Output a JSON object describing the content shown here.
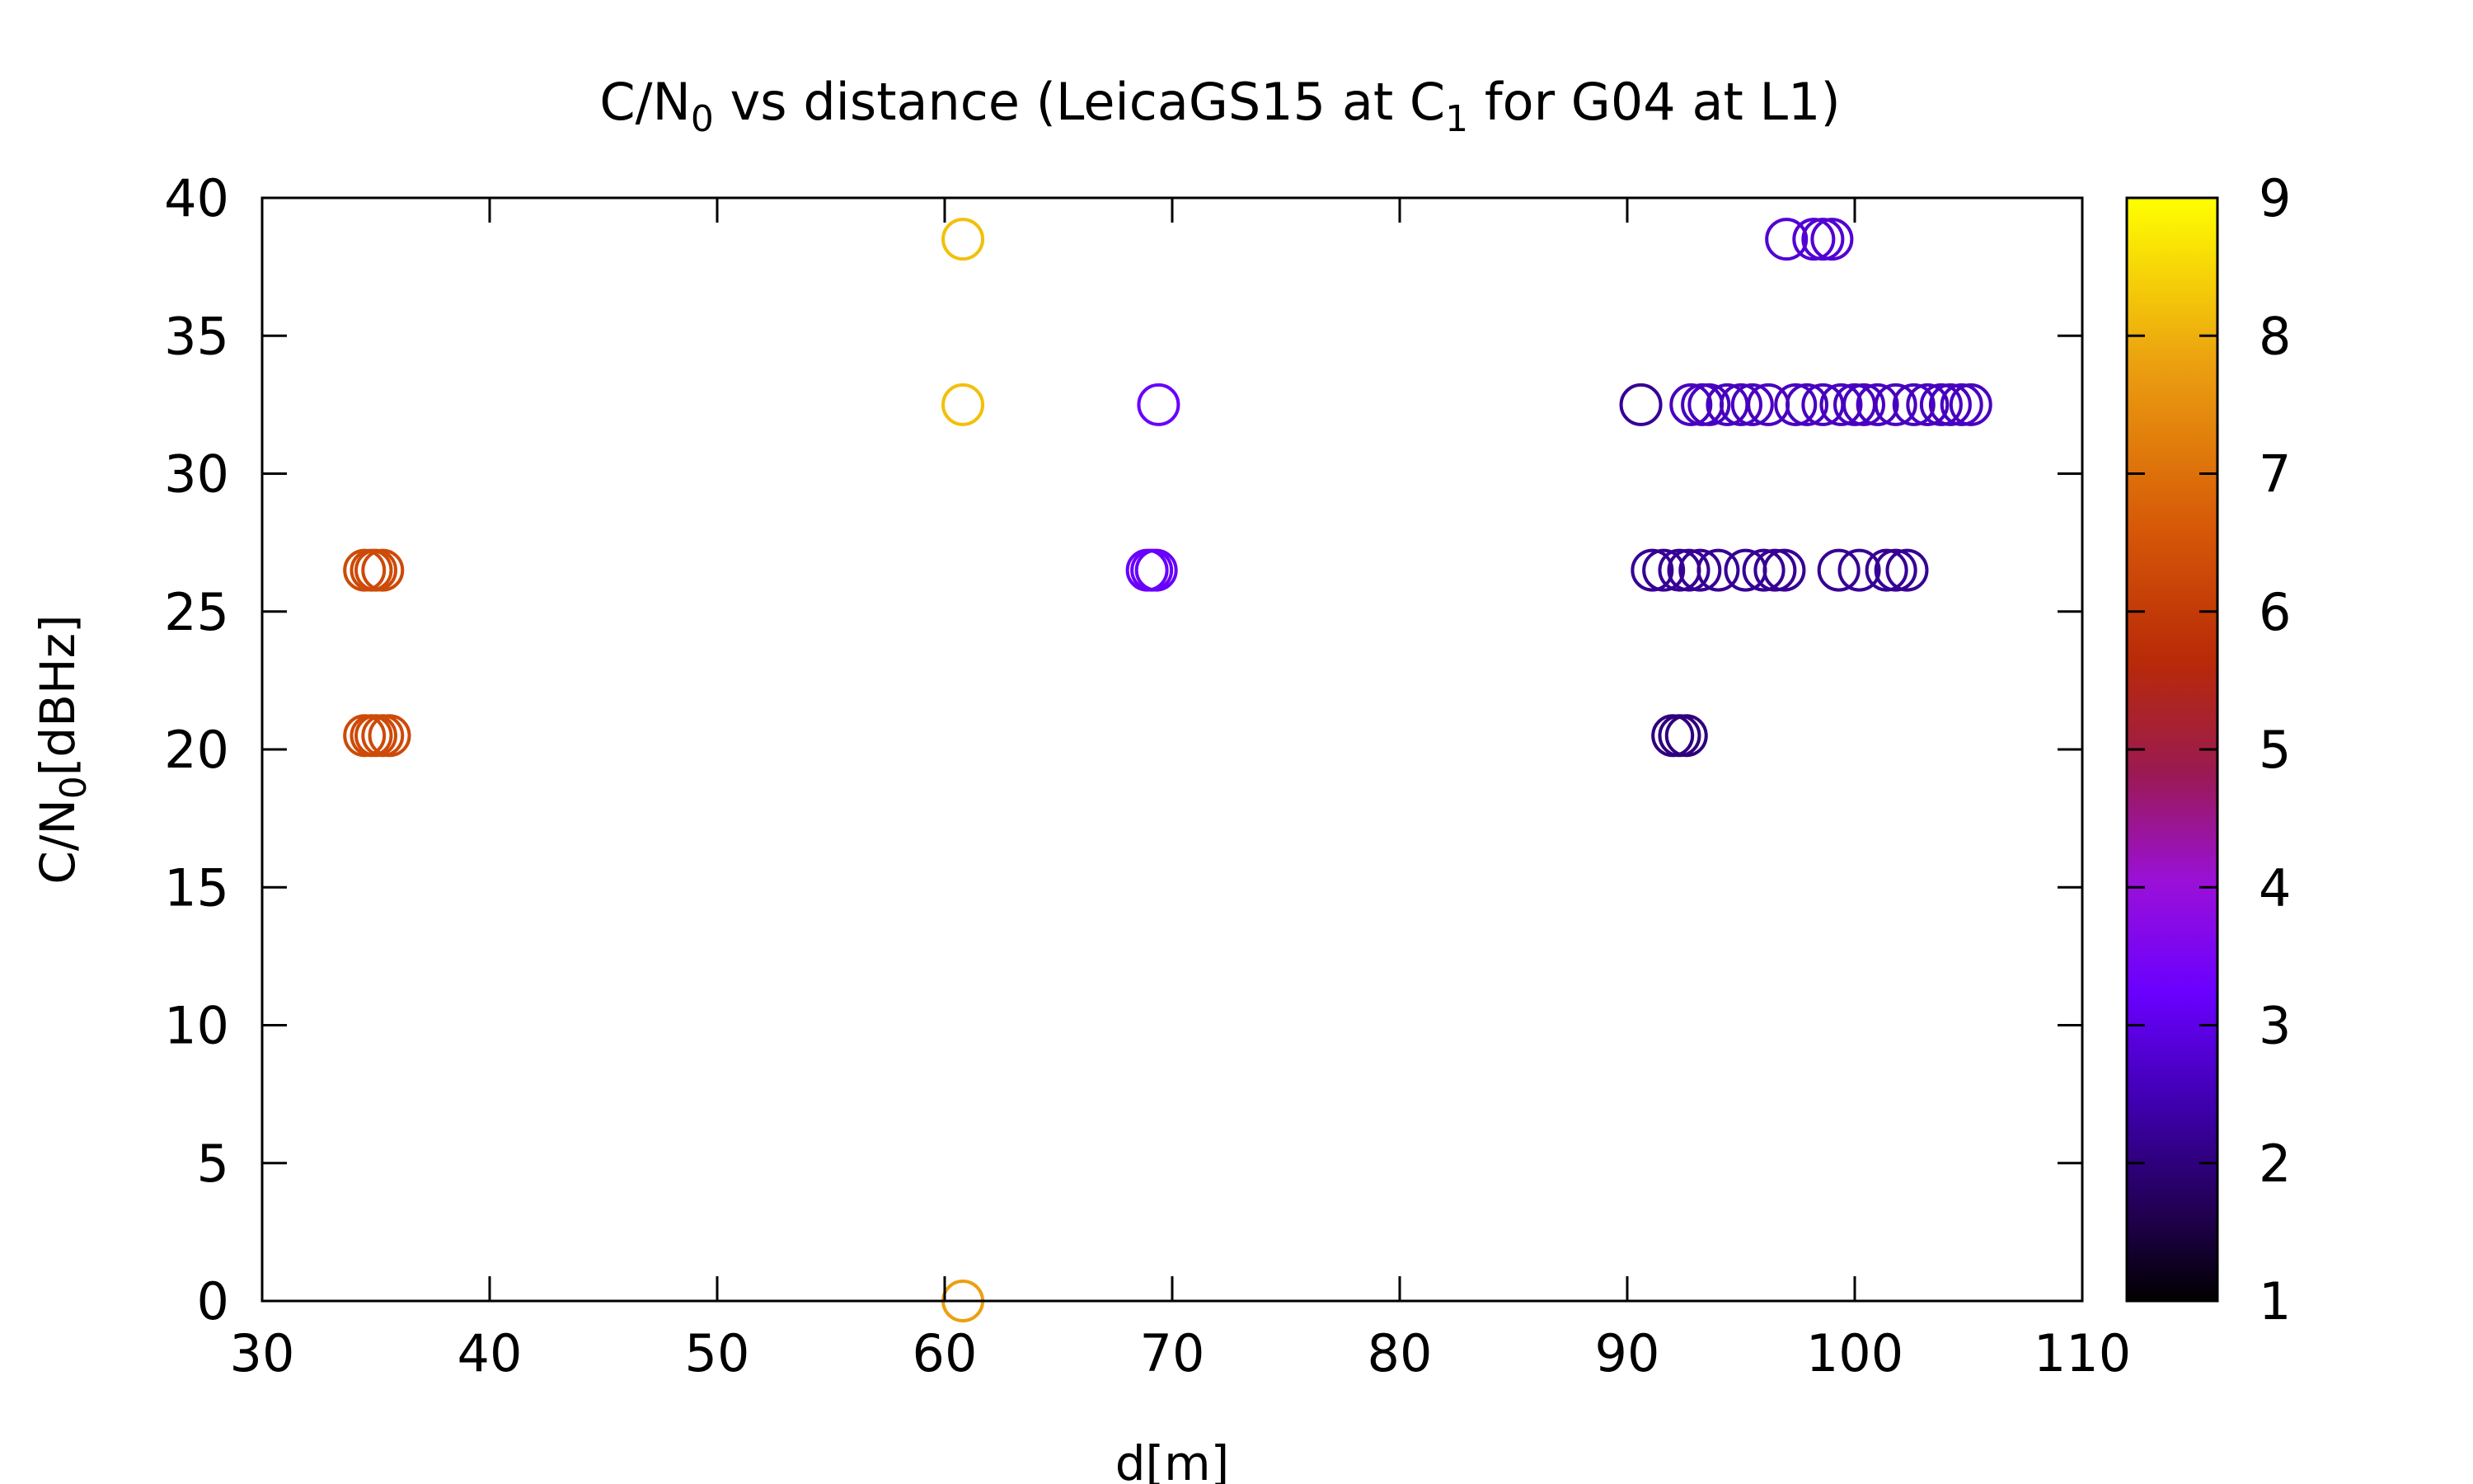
{
  "chart_data": {
    "type": "scatter",
    "title": {
      "parts": [
        {
          "text": "C/N",
          "sub": false
        },
        {
          "text": "0",
          "sub": true
        },
        {
          "text": " vs distance (LeicaGS15 at C",
          "sub": false
        },
        {
          "text": "1",
          "sub": true
        },
        {
          "text": " for G04 at L1)",
          "sub": false
        }
      ]
    },
    "xlabel": "d[m]",
    "ylabel": {
      "parts": [
        {
          "text": "C/N",
          "sub": false
        },
        {
          "text": "0",
          "sub": true
        },
        {
          "text": "[dBHz]",
          "sub": false
        }
      ]
    },
    "xlim": [
      30,
      110
    ],
    "ylim": [
      0,
      40
    ],
    "xticks": [
      "30",
      "40",
      "50",
      "60",
      "70",
      "80",
      "90",
      "100",
      "110"
    ],
    "yticks": [
      "0",
      "5",
      "10",
      "15",
      "20",
      "25",
      "30",
      "35",
      "40"
    ],
    "grid": false,
    "marker": "open-circle",
    "colorbar": {
      "range": [
        1,
        9
      ],
      "ticks": [
        "1",
        "2",
        "3",
        "4",
        "5",
        "6",
        "7",
        "8",
        "9"
      ],
      "palette": "black-blue-purple-red-orange-yellow"
    },
    "points": [
      {
        "x": 34.5,
        "y": 26.5,
        "c": 6.3
      },
      {
        "x": 34.8,
        "y": 26.5,
        "c": 6.3
      },
      {
        "x": 35.0,
        "y": 26.5,
        "c": 6.3
      },
      {
        "x": 35.3,
        "y": 26.5,
        "c": 6.3
      },
      {
        "x": 34.5,
        "y": 20.5,
        "c": 6.3
      },
      {
        "x": 34.8,
        "y": 20.5,
        "c": 6.3
      },
      {
        "x": 35.0,
        "y": 20.5,
        "c": 6.3
      },
      {
        "x": 35.3,
        "y": 20.5,
        "c": 6.3
      },
      {
        "x": 35.6,
        "y": 20.5,
        "c": 6.3
      },
      {
        "x": 60.8,
        "y": 38.5,
        "c": 8.2
      },
      {
        "x": 60.8,
        "y": 32.5,
        "c": 8.2
      },
      {
        "x": 60.8,
        "y": 0,
        "c": 7.8
      },
      {
        "x": 69.4,
        "y": 32.5,
        "c": 3.2
      },
      {
        "x": 68.9,
        "y": 26.5,
        "c": 3.2
      },
      {
        "x": 69.1,
        "y": 26.5,
        "c": 3.2
      },
      {
        "x": 69.3,
        "y": 26.5,
        "c": 3.2
      },
      {
        "x": 97.0,
        "y": 38.5,
        "c": 2.8
      },
      {
        "x": 98.2,
        "y": 38.5,
        "c": 2.8
      },
      {
        "x": 98.6,
        "y": 38.5,
        "c": 2.8
      },
      {
        "x": 99.0,
        "y": 38.5,
        "c": 2.8
      },
      {
        "x": 90.6,
        "y": 32.5,
        "c": 2.2
      },
      {
        "x": 92.8,
        "y": 32.5,
        "c": 2.6
      },
      {
        "x": 93.3,
        "y": 32.5,
        "c": 2.6
      },
      {
        "x": 93.6,
        "y": 32.5,
        "c": 2.6
      },
      {
        "x": 94.4,
        "y": 32.5,
        "c": 2.6
      },
      {
        "x": 95.0,
        "y": 32.5,
        "c": 2.6
      },
      {
        "x": 95.5,
        "y": 32.5,
        "c": 2.6
      },
      {
        "x": 96.2,
        "y": 32.5,
        "c": 2.6
      },
      {
        "x": 97.4,
        "y": 32.5,
        "c": 2.6
      },
      {
        "x": 97.9,
        "y": 32.5,
        "c": 2.6
      },
      {
        "x": 98.6,
        "y": 32.5,
        "c": 2.6
      },
      {
        "x": 99.4,
        "y": 32.5,
        "c": 2.6
      },
      {
        "x": 100.0,
        "y": 32.5,
        "c": 2.6
      },
      {
        "x": 100.4,
        "y": 32.5,
        "c": 2.6
      },
      {
        "x": 101.0,
        "y": 32.5,
        "c": 2.6
      },
      {
        "x": 101.8,
        "y": 32.5,
        "c": 2.6
      },
      {
        "x": 102.6,
        "y": 32.5,
        "c": 2.6
      },
      {
        "x": 103.2,
        "y": 32.5,
        "c": 2.6
      },
      {
        "x": 103.8,
        "y": 32.5,
        "c": 2.6
      },
      {
        "x": 104.2,
        "y": 32.5,
        "c": 2.6
      },
      {
        "x": 104.7,
        "y": 32.5,
        "c": 2.6
      },
      {
        "x": 105.1,
        "y": 32.5,
        "c": 2.6
      },
      {
        "x": 91.1,
        "y": 26.5,
        "c": 2.2
      },
      {
        "x": 91.6,
        "y": 26.5,
        "c": 2.2
      },
      {
        "x": 92.3,
        "y": 26.5,
        "c": 2.2
      },
      {
        "x": 92.7,
        "y": 26.5,
        "c": 2.2
      },
      {
        "x": 93.2,
        "y": 26.5,
        "c": 2.2
      },
      {
        "x": 94.0,
        "y": 26.5,
        "c": 2.2
      },
      {
        "x": 95.2,
        "y": 26.5,
        "c": 2.2
      },
      {
        "x": 96.0,
        "y": 26.5,
        "c": 2.2
      },
      {
        "x": 96.5,
        "y": 26.5,
        "c": 2.2
      },
      {
        "x": 96.9,
        "y": 26.5,
        "c": 2.2
      },
      {
        "x": 99.3,
        "y": 26.5,
        "c": 2.2
      },
      {
        "x": 100.2,
        "y": 26.5,
        "c": 2.2
      },
      {
        "x": 101.4,
        "y": 26.5,
        "c": 2.2
      },
      {
        "x": 101.8,
        "y": 26.5,
        "c": 2.2
      },
      {
        "x": 102.3,
        "y": 26.5,
        "c": 2.2
      },
      {
        "x": 92.0,
        "y": 20.5,
        "c": 2.0
      },
      {
        "x": 92.3,
        "y": 20.5,
        "c": 2.0
      },
      {
        "x": 92.6,
        "y": 20.5,
        "c": 2.0
      }
    ]
  }
}
